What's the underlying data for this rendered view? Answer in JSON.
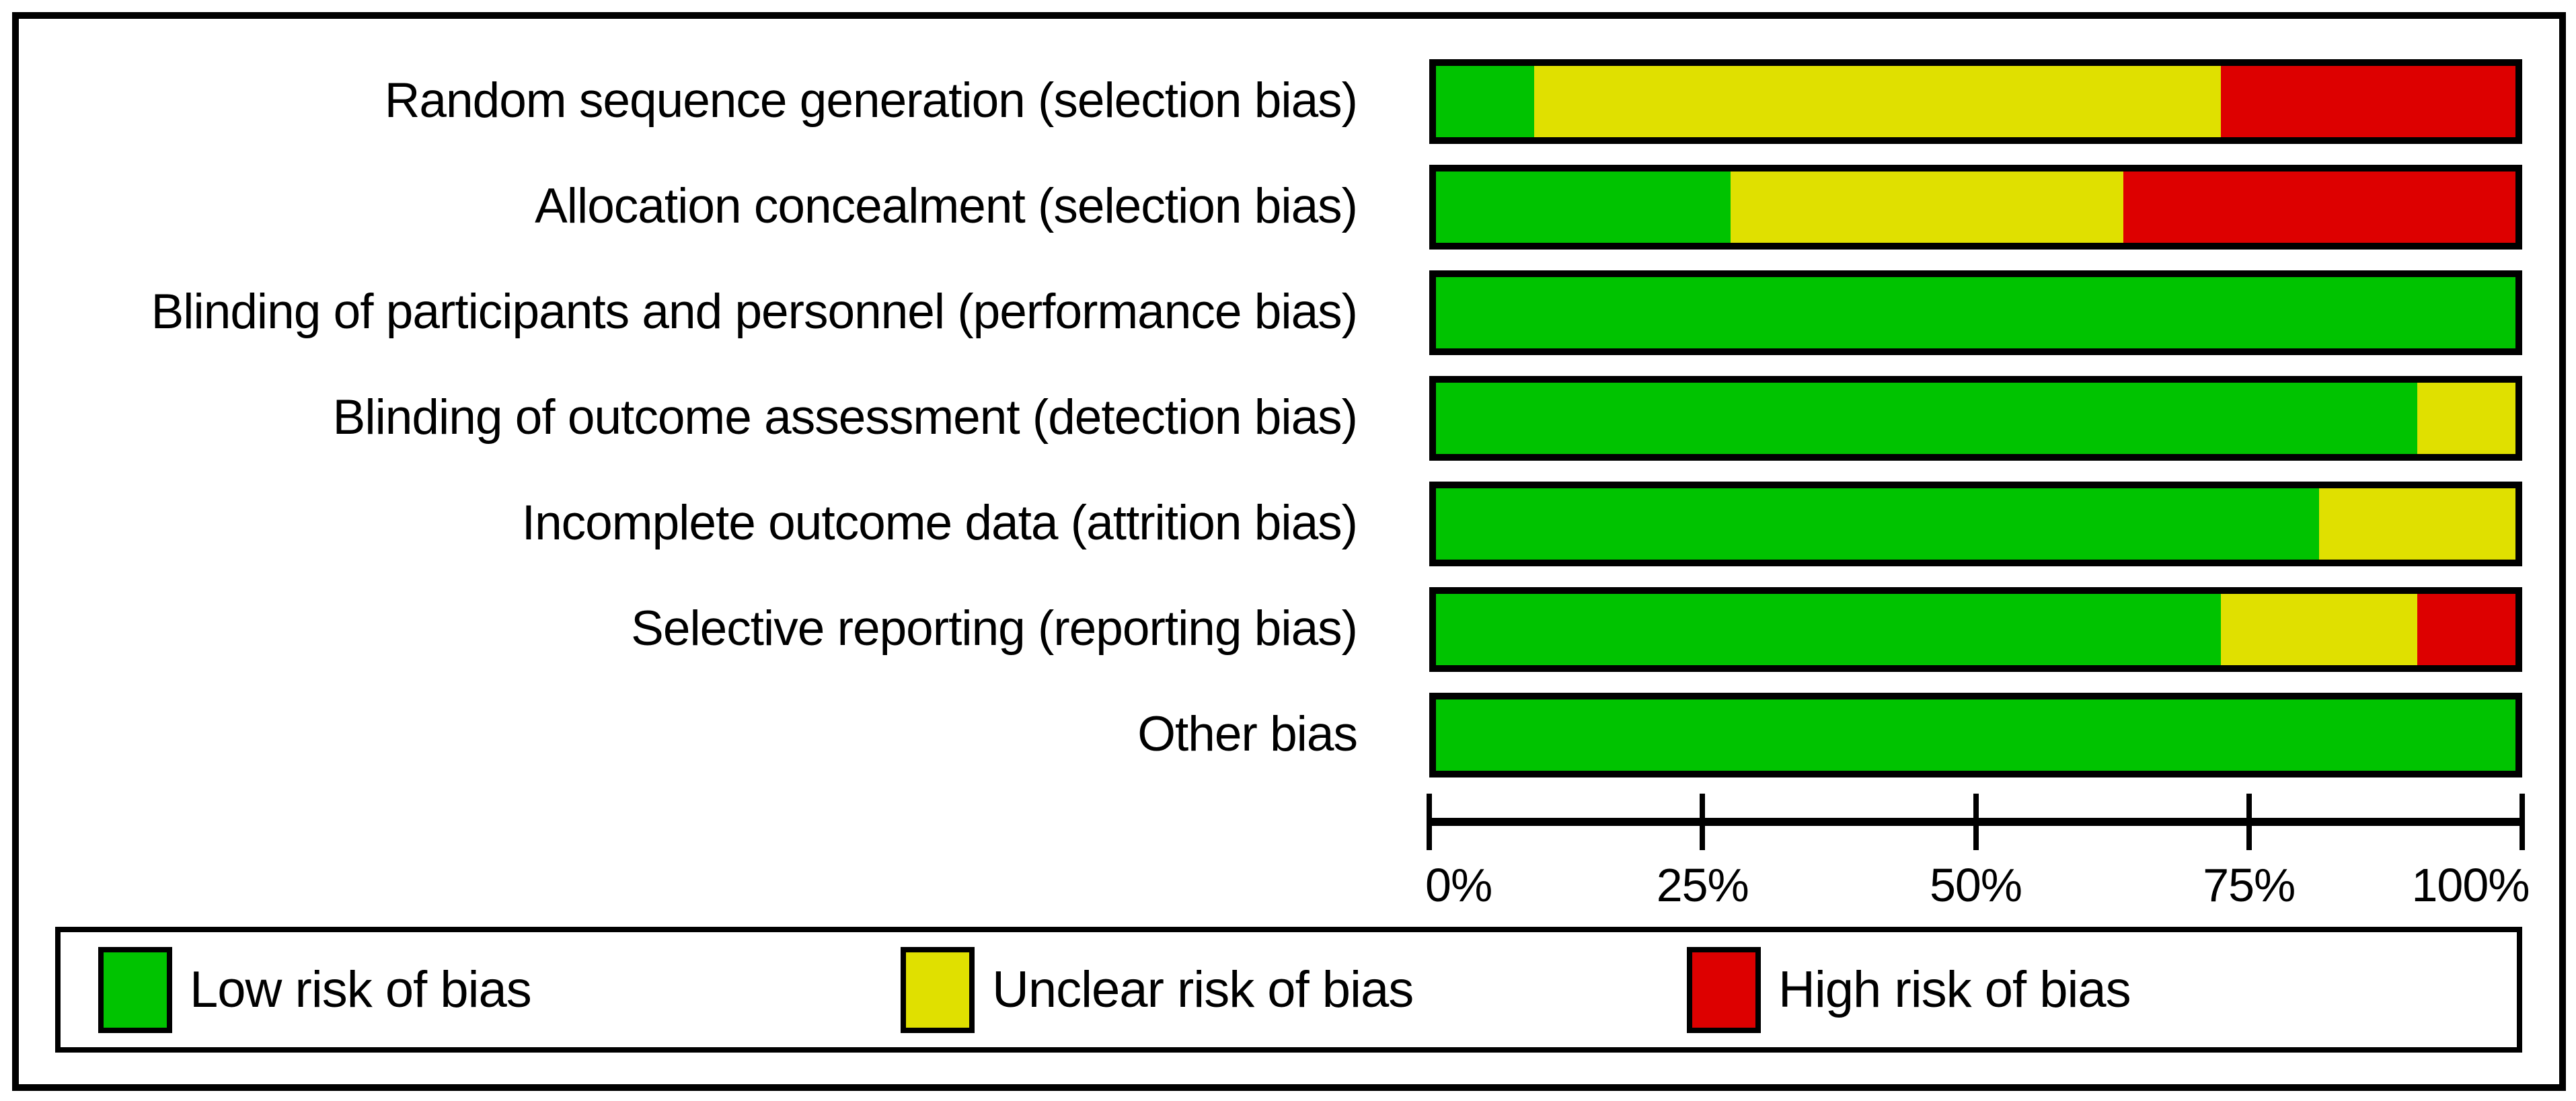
{
  "chart_data": {
    "type": "bar",
    "orientation": "horizontal",
    "stacked": true,
    "title": "",
    "xlabel": "",
    "ylabel": "",
    "xlim": [
      0,
      100
    ],
    "grid": false,
    "legend_position": "bottom",
    "categories": [
      "Random sequence generation (selection bias)",
      "Allocation concealment (selection bias)",
      "Blinding of participants and personnel (performance bias)",
      "Blinding of outcome assessment (detection bias)",
      "Incomplete outcome data (attrition bias)",
      "Selective reporting (reporting bias)",
      "Other bias"
    ],
    "series": [
      {
        "name": "Low risk of bias",
        "color": "#00C300",
        "values": [
          9.1,
          27.3,
          100,
          90.9,
          81.8,
          72.7,
          100
        ]
      },
      {
        "name": "Unclear risk of bias",
        "color": "#E0E000",
        "values": [
          63.6,
          36.4,
          0,
          9.1,
          18.2,
          18.2,
          0
        ]
      },
      {
        "name": "High risk of bias",
        "color": "#DD0000",
        "values": [
          27.3,
          36.4,
          0,
          0,
          0,
          9.1,
          0
        ]
      }
    ],
    "x_ticks": [
      {
        "label": "0%",
        "value": 0
      },
      {
        "label": "25%",
        "value": 25
      },
      {
        "label": "50%",
        "value": 50
      },
      {
        "label": "75%",
        "value": 75
      },
      {
        "label": "100%",
        "value": 100
      }
    ],
    "legend": [
      {
        "label": "Low risk of bias",
        "color": "#00C300"
      },
      {
        "label": "Unclear risk of bias",
        "color": "#E0E000"
      },
      {
        "label": "High risk of bias",
        "color": "#DD0000"
      }
    ],
    "colors": {
      "frame": "#000000",
      "background": "#ffffff"
    }
  }
}
